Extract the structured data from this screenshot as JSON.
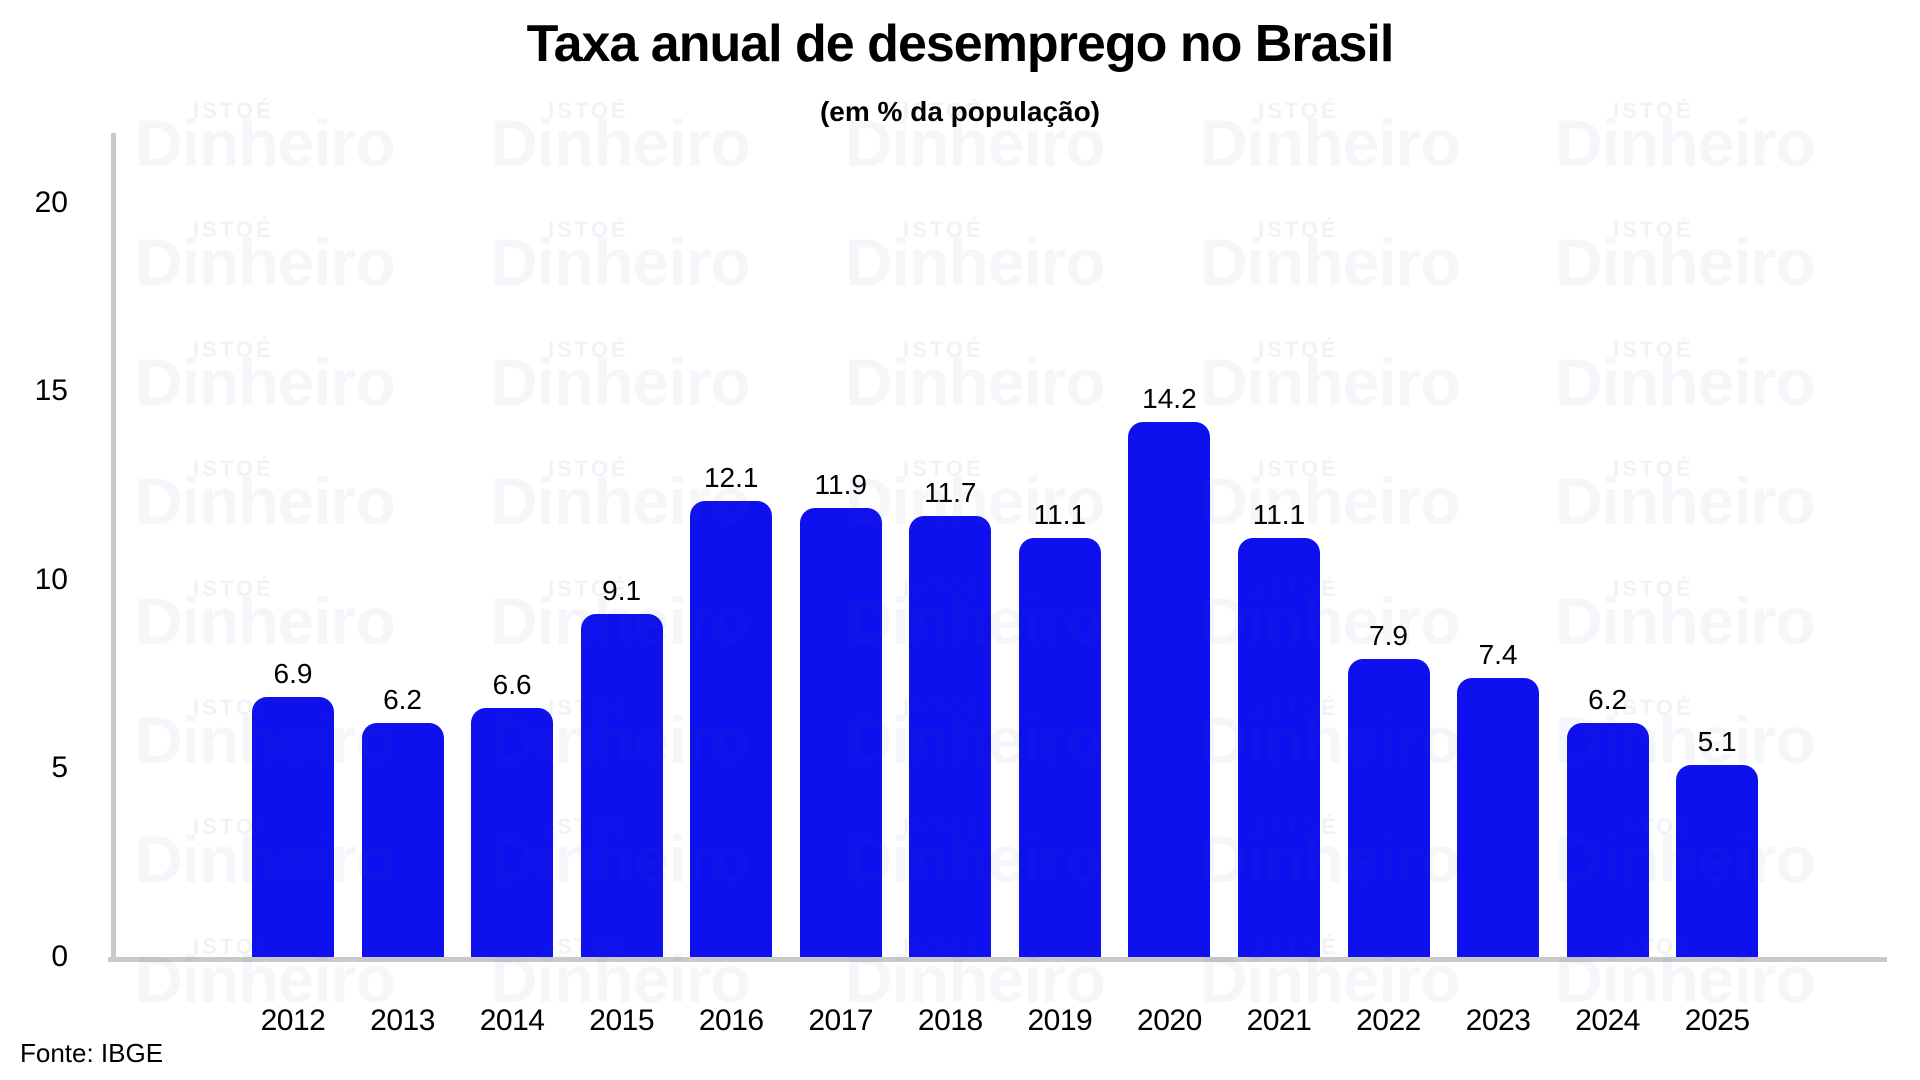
{
  "header": {
    "title": "Taxa anual de desemprego no Brasil",
    "subtitle": "(em % da população)"
  },
  "source": "Fonte: IBGE",
  "watermark": {
    "brand_small": "ISTOÉ",
    "brand_large": "Dinheiro"
  },
  "colors": {
    "bar": "#0e10ee",
    "axis": "#c9c9c9",
    "label_text": "#000000",
    "watermark_tint": "rgba(64, 82, 150, 0.055)",
    "watermark_small_tint": "rgba(64, 82, 150, 0.075)"
  },
  "chart_data": {
    "type": "bar",
    "title": "Taxa anual de desemprego no Brasil",
    "subtitle": "(em % da população)",
    "categories": [
      "2012",
      "2013",
      "2014",
      "2015",
      "2016",
      "2017",
      "2018",
      "2019",
      "2020",
      "2021",
      "2022",
      "2023",
      "2024",
      "2025"
    ],
    "values": [
      6.9,
      6.2,
      6.6,
      9.1,
      12.1,
      11.9,
      11.7,
      11.1,
      14.2,
      11.1,
      7.9,
      7.4,
      6.2,
      5.1
    ],
    "value_labels": [
      "6.9",
      "6.2",
      "6.6",
      "9.1",
      "12.1",
      "11.9",
      "11.7",
      "11.1",
      "14.2",
      "11.1",
      "7.9",
      "7.4",
      "6.2",
      "5.1"
    ],
    "xlabel": "",
    "ylabel": "",
    "ylim": [
      0,
      21.8
    ],
    "yticks": [
      0,
      5,
      10,
      15,
      20
    ],
    "grid": false,
    "legend": null,
    "bar_color": "#0e10ee",
    "source": "Fonte: IBGE"
  }
}
